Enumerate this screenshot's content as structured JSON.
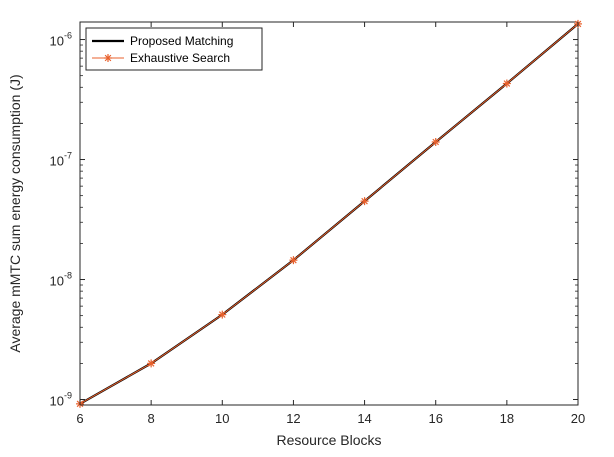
{
  "chart_data": {
    "type": "line",
    "xlabel": "Resource Blocks",
    "ylabel": "Average mMTC sum energy consumption (J)",
    "yscale": "log",
    "xlim": [
      6,
      20
    ],
    "ylim": [
      9e-10,
      1.4e-06
    ],
    "x": [
      6,
      8,
      10,
      12,
      14,
      16,
      18,
      20
    ],
    "x_ticks": [
      6,
      8,
      10,
      12,
      14,
      16,
      18,
      20
    ],
    "y_ticks": [
      {
        "value": 1e-09,
        "base": "10",
        "exp": "-9"
      },
      {
        "value": 1e-08,
        "base": "10",
        "exp": "-8"
      },
      {
        "value": 1e-07,
        "base": "10",
        "exp": "-7"
      },
      {
        "value": 1e-06,
        "base": "10",
        "exp": "-6"
      }
    ],
    "grid": false,
    "legend_position": "top-left",
    "series": [
      {
        "name": "Proposed Matching",
        "color": "#000000",
        "marker": "none",
        "values": [
          9.2e-10,
          2e-09,
          5.1e-09,
          1.45e-08,
          4.5e-08,
          1.4e-07,
          4.3e-07,
          1.35e-06
        ]
      },
      {
        "name": "Exhaustive Search",
        "color": "#e8602c",
        "marker": "asterisk",
        "values": [
          9.2e-10,
          2e-09,
          5.1e-09,
          1.45e-08,
          4.5e-08,
          1.4e-07,
          4.3e-07,
          1.35e-06
        ]
      }
    ]
  }
}
